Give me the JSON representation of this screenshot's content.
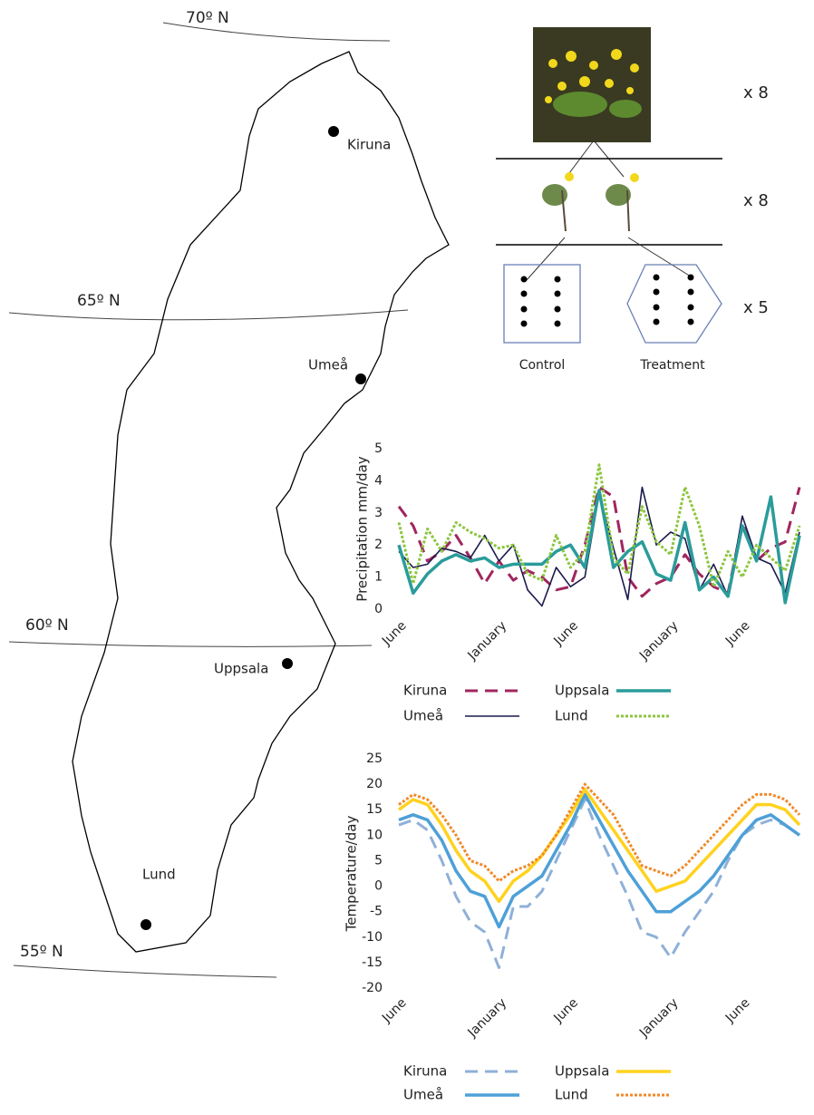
{
  "map": {
    "latitudes": [
      "70º N",
      "65º N",
      "60º N",
      "55º N"
    ],
    "cities": [
      "Kiruna",
      "Umeå",
      "Uppsala",
      "Lund"
    ]
  },
  "design": {
    "multipliers": [
      "x 8",
      "x 8",
      "x 5"
    ],
    "groups": [
      "Control",
      "Treatment"
    ]
  },
  "chart_data": [
    {
      "type": "line",
      "y_label": "Precipitation mm/day",
      "categories": [
        "June",
        null,
        null,
        null,
        null,
        null,
        null,
        "January",
        null,
        null,
        null,
        null,
        "June",
        null,
        null,
        null,
        null,
        null,
        null,
        "January",
        null,
        null,
        null,
        null,
        "June",
        null,
        null,
        null,
        null
      ],
      "ylim": [
        0,
        5
      ],
      "yticks": [
        0,
        1,
        2,
        3,
        4,
        5
      ],
      "series": [
        {
          "name": "Kiruna",
          "color": "#a0265e",
          "style": "dashed",
          "values": [
            3.2,
            2.6,
            1.5,
            1.8,
            2.3,
            1.6,
            0.8,
            1.5,
            0.9,
            1.2,
            1.0,
            0.6,
            0.7,
            2.0,
            3.8,
            3.5,
            1.0,
            0.4,
            0.8,
            1.0,
            1.7,
            1.1,
            0.7,
            0.5,
            2.7,
            1.5,
            1.9,
            2.1,
            3.8
          ]
        },
        {
          "name": "Umeå",
          "color": "#1c1a4e",
          "style": "solid",
          "values": [
            1.8,
            1.3,
            1.4,
            1.9,
            1.8,
            1.6,
            2.3,
            1.5,
            2.0,
            0.6,
            0.1,
            1.3,
            0.7,
            1.0,
            3.6,
            1.9,
            0.3,
            3.8,
            2.0,
            2.4,
            2.2,
            0.6,
            1.4,
            0.4,
            2.9,
            1.6,
            1.4,
            0.5,
            2.4
          ]
        },
        {
          "name": "Uppsala",
          "color": "#2a9c9a",
          "style": "thick",
          "values": [
            2.0,
            0.5,
            1.1,
            1.5,
            1.7,
            1.5,
            1.6,
            1.3,
            1.4,
            1.4,
            1.4,
            1.8,
            2.0,
            1.3,
            3.7,
            1.3,
            1.8,
            2.1,
            1.1,
            0.9,
            2.7,
            0.6,
            1.0,
            0.4,
            2.6,
            1.5,
            3.5,
            0.2,
            2.3
          ]
        },
        {
          "name": "Lund",
          "color": "#8cc63f",
          "style": "dotted",
          "values": [
            2.7,
            0.8,
            2.5,
            1.8,
            2.7,
            2.4,
            2.2,
            1.9,
            2.0,
            1.1,
            0.9,
            2.3,
            1.3,
            1.8,
            4.5,
            1.6,
            1.1,
            3.2,
            2.1,
            1.7,
            3.8,
            2.6,
            0.7,
            1.8,
            1.0,
            2.0,
            1.6,
            1.2,
            2.6
          ]
        }
      ]
    },
    {
      "type": "line",
      "y_label": "Temperature/day",
      "categories": [
        "June",
        null,
        null,
        null,
        null,
        null,
        null,
        "January",
        null,
        null,
        null,
        null,
        "June",
        null,
        null,
        null,
        null,
        null,
        null,
        "January",
        null,
        null,
        null,
        null,
        "June",
        null,
        null,
        null,
        null
      ],
      "ylim": [
        -20,
        25
      ],
      "yticks": [
        -20,
        -15,
        -10,
        -5,
        0,
        5,
        10,
        15,
        20,
        25
      ],
      "series": [
        {
          "name": "Kiruna",
          "color": "#8fb0d8",
          "style": "dashed",
          "values": [
            12,
            13,
            11,
            5,
            -2,
            -7,
            -9,
            -16,
            -4,
            -4,
            -1,
            5,
            11,
            17,
            10,
            4,
            -2,
            -9,
            -10,
            -14,
            -9,
            -5,
            -1,
            5,
            10,
            12,
            13,
            12,
            10
          ]
        },
        {
          "name": "Umeå",
          "color": "#4ea0d8",
          "style": "thick",
          "values": [
            13,
            14,
            13,
            9,
            3,
            -1,
            -2,
            -8,
            -2,
            0,
            2,
            7,
            12,
            18,
            13,
            8,
            3,
            -1,
            -5,
            -5,
            -3,
            -1,
            2,
            6,
            10,
            13,
            14,
            12,
            10
          ]
        },
        {
          "name": "Uppsala",
          "color": "#ffd21f",
          "style": "thick",
          "values": [
            15,
            17,
            16,
            12,
            7,
            3,
            1,
            -3,
            1,
            3,
            6,
            10,
            14,
            19,
            15,
            11,
            7,
            3,
            -1,
            0,
            1,
            4,
            7,
            10,
            13,
            16,
            16,
            15,
            12
          ]
        },
        {
          "name": "Lund",
          "color": "#f08a2a",
          "style": "dotted",
          "values": [
            16,
            18,
            17,
            14,
            10,
            5,
            4,
            1,
            3,
            4,
            6,
            10,
            15,
            20,
            17,
            14,
            9,
            4,
            3,
            2,
            4,
            7,
            10,
            13,
            16,
            18,
            18,
            17,
            14
          ]
        }
      ]
    }
  ]
}
